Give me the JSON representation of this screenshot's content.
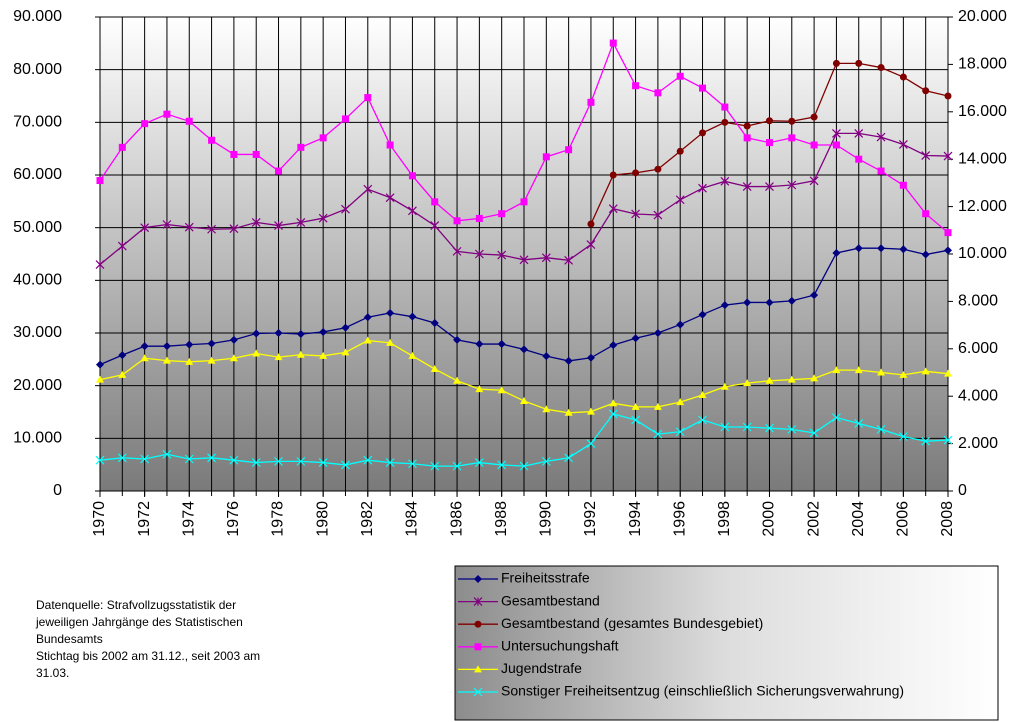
{
  "chart_data": {
    "type": "line",
    "x": [
      1970,
      1971,
      1972,
      1973,
      1974,
      1975,
      1976,
      1977,
      1978,
      1979,
      1980,
      1981,
      1982,
      1983,
      1984,
      1985,
      1986,
      1987,
      1988,
      1989,
      1990,
      1991,
      1992,
      1993,
      1994,
      1995,
      1996,
      1997,
      1998,
      1999,
      2000,
      2001,
      2002,
      2003,
      2004,
      2005,
      2006,
      2007,
      2008
    ],
    "xlim": [
      1970,
      2008
    ],
    "xticks": [
      1970,
      1972,
      1974,
      1976,
      1978,
      1980,
      1982,
      1984,
      1986,
      1988,
      1990,
      1992,
      1994,
      1996,
      1998,
      2000,
      2002,
      2004,
      2006,
      2008
    ],
    "ylim": [
      0,
      90000
    ],
    "yticks": [
      0,
      {
        "value": 10000,
        "label": "10.000"
      },
      {
        "value": 20000,
        "label": "20.000"
      },
      {
        "value": 30000,
        "label": "30.000"
      },
      {
        "value": 40000,
        "label": "40.000"
      },
      {
        "value": 50000,
        "label": "50.000"
      },
      {
        "value": 60000,
        "label": "60.000"
      },
      {
        "value": 70000,
        "label": "70.000"
      },
      {
        "value": 80000,
        "label": "80.000"
      },
      {
        "value": 90000,
        "label": "90.000"
      }
    ],
    "y2lim": [
      0,
      20000
    ],
    "y2ticks": [
      0,
      {
        "value": 2000,
        "label": "2.000"
      },
      {
        "value": 4000,
        "label": "4.000"
      },
      {
        "value": 6000,
        "label": "6.000"
      },
      {
        "value": 8000,
        "label": "8.000"
      },
      {
        "value": 10000,
        "label": "10.000"
      },
      {
        "value": 12000,
        "label": "12.000"
      },
      {
        "value": 14000,
        "label": "14.000"
      },
      {
        "value": 16000,
        "label": "16.000"
      },
      {
        "value": 18000,
        "label": "18.000"
      },
      {
        "value": 20000,
        "label": "20.000"
      }
    ],
    "grid": true,
    "legend": "bottom-right",
    "series": [
      {
        "name": "Freiheitsstrafe",
        "color": "#000080",
        "marker": "diamond",
        "values": [
          24000,
          25800,
          27500,
          27500,
          27800,
          28000,
          28700,
          29900,
          30000,
          29800,
          30200,
          31000,
          33000,
          33800,
          33100,
          31900,
          28700,
          27900,
          27900,
          26900,
          25600,
          24700,
          25300,
          27700,
          29000,
          30000,
          31600,
          33500,
          35300,
          35800,
          35800,
          36100,
          37200,
          45200,
          46100,
          46100,
          45900,
          44900,
          45700
        ]
      },
      {
        "name": "Gesamtbestand",
        "color": "#800080",
        "marker": "star",
        "values": [
          43000,
          46500,
          50000,
          50600,
          50100,
          49700,
          49800,
          51000,
          50400,
          51000,
          51800,
          53500,
          57300,
          55700,
          53200,
          50400,
          45500,
          45000,
          44800,
          43900,
          44300,
          43800,
          46800,
          53600,
          52600,
          52400,
          55300,
          57500,
          58800,
          57800,
          57800,
          58100,
          58900,
          67900,
          67900,
          67200,
          65800,
          63700,
          63600
        ]
      },
      {
        "name": "Gesamtbestand (gesamtes Bundesgebiet)",
        "color": "#800000",
        "marker": "circle",
        "values": [
          null,
          null,
          null,
          null,
          null,
          null,
          null,
          null,
          null,
          null,
          null,
          null,
          null,
          null,
          null,
          null,
          null,
          null,
          null,
          null,
          null,
          null,
          50700,
          60000,
          60400,
          61100,
          64500,
          68000,
          70000,
          69300,
          70300,
          70200,
          71000,
          81200,
          81200,
          80400,
          78600,
          76000,
          75000
        ]
      },
      {
        "name": "Untersuchungshaft",
        "color": "#ff00ff",
        "marker": "square",
        "axis": "y2",
        "values": [
          13100,
          14500,
          15500,
          15900,
          15600,
          14800,
          14200,
          14200,
          13500,
          14500,
          14900,
          15700,
          16600,
          14600,
          13300,
          12200,
          11400,
          11500,
          11700,
          12200,
          14100,
          14400,
          16400,
          18900,
          17100,
          16800,
          17500,
          17000,
          16200,
          14900,
          14700,
          14900,
          14600,
          14600,
          14000,
          13500,
          12900,
          11700,
          10900
        ]
      },
      {
        "name": "Jugendstrafe",
        "color": "#ffff00",
        "marker": "triangle",
        "axis": "y2",
        "values": [
          4700,
          4900,
          5600,
          5500,
          5450,
          5500,
          5600,
          5800,
          5650,
          5750,
          5700,
          5850,
          6350,
          6250,
          5700,
          5150,
          4650,
          4300,
          4250,
          3800,
          3450,
          3300,
          3350,
          3700,
          3550,
          3550,
          3750,
          4050,
          4400,
          4550,
          4650,
          4700,
          4750,
          5100,
          5100,
          5000,
          4900,
          5050,
          4950
        ]
      },
      {
        "name": "Sonstiger Freiheitsentzug (einschließlich Sicherungsverwahrung)",
        "color": "#00ffff",
        "marker": "x",
        "axis": "y2",
        "values": [
          1300,
          1400,
          1350,
          1550,
          1350,
          1400,
          1300,
          1200,
          1250,
          1250,
          1200,
          1100,
          1300,
          1200,
          1150,
          1050,
          1050,
          1200,
          1100,
          1050,
          1250,
          1400,
          2000,
          3250,
          3000,
          2400,
          2500,
          3000,
          2700,
          2700,
          2650,
          2600,
          2450,
          3100,
          2850,
          2600,
          2300,
          2100,
          2150
        ]
      }
    ],
    "note": [
      "Datenquelle: Strafvollzugsstatistik der",
      "jeweiligen Jahrgänge des Statistischen",
      "Bundesamts",
      "Stichtag bis 2002 am 31.12., seit 2003 am",
      "31.03."
    ]
  }
}
